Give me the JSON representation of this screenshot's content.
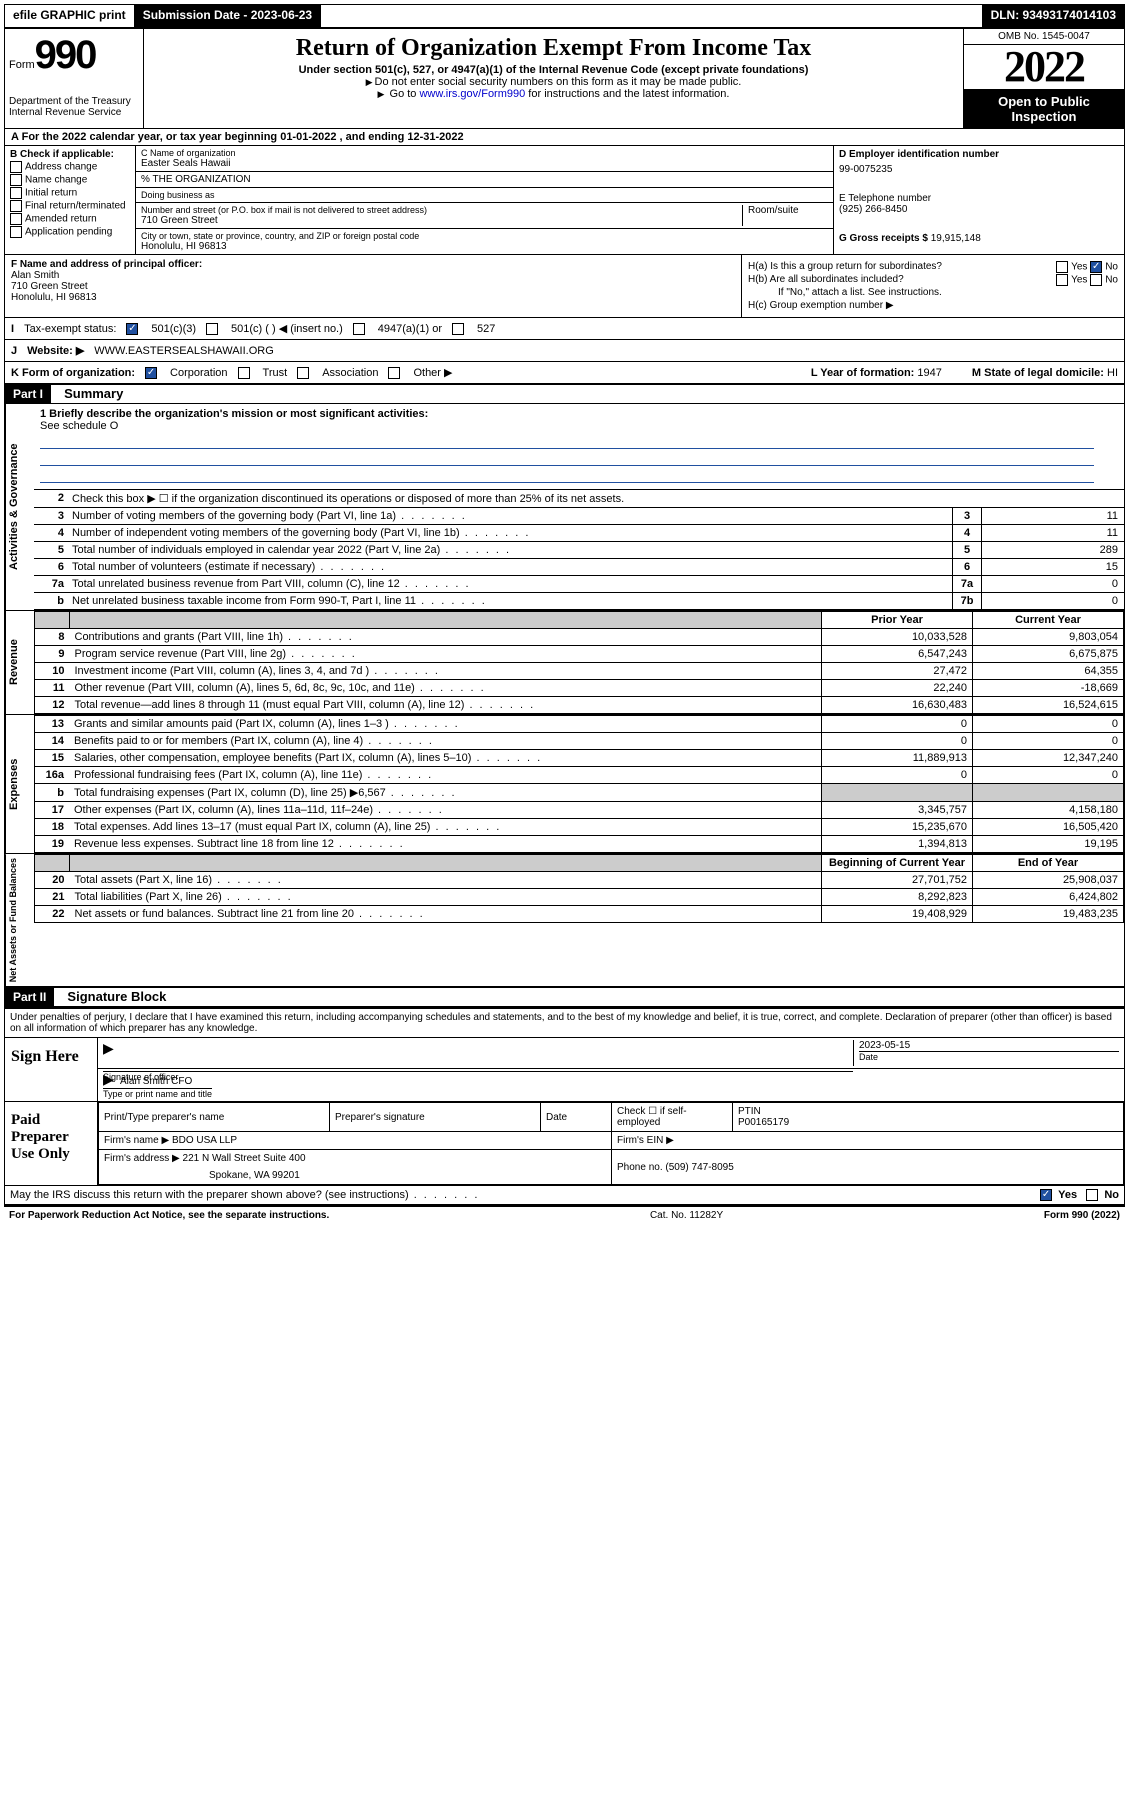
{
  "topbar": {
    "efile": "efile GRAPHIC print",
    "submission": "Submission Date - 2023-06-23",
    "dln": "DLN: 93493174014103"
  },
  "header": {
    "form_word": "Form",
    "form_num": "990",
    "dept": "Department of the Treasury Internal Revenue Service",
    "title": "Return of Organization Exempt From Income Tax",
    "sub": "Under section 501(c), 527, or 4947(a)(1) of the Internal Revenue Code (except private foundations)",
    "note1": "Do not enter social security numbers on this form as it may be made public.",
    "note2_pre": "Go to ",
    "note2_link": "www.irs.gov/Form990",
    "note2_post": " for instructions and the latest information.",
    "omb": "OMB No. 1545-0047",
    "year": "2022",
    "inspect": "Open to Public Inspection"
  },
  "row_a": "For the 2022 calendar year, or tax year beginning 01-01-2022    , and ending 12-31-2022",
  "col_b": {
    "hdr": "B Check if applicable:",
    "opts": [
      "Address change",
      "Name change",
      "Initial return",
      "Final return/terminated",
      "Amended return",
      "Application pending"
    ]
  },
  "col_c": {
    "name_lbl": "C Name of organization",
    "name": "Easter Seals Hawaii",
    "pct": "% THE ORGANIZATION",
    "dba": "Doing business as",
    "addr_lbl": "Number and street (or P.O. box if mail is not delivered to street address)",
    "addr": "710 Green Street",
    "room": "Room/suite",
    "city_lbl": "City or town, state or province, country, and ZIP or foreign postal code",
    "city": "Honolulu, HI  96813"
  },
  "col_d": {
    "ein_lbl": "D Employer identification number",
    "ein": "99-0075235",
    "tel_lbl": "E Telephone number",
    "tel": "(925) 266-8450",
    "gross_lbl": "G Gross receipts $",
    "gross": "19,915,148"
  },
  "row_f": {
    "lbl": "F  Name and address of principal officer:",
    "name": "Alan Smith",
    "addr": "710 Green Street",
    "city": "Honolulu, HI  96813"
  },
  "row_h": {
    "ha": "H(a)  Is this a group return for subordinates?",
    "hb": "H(b)  Are all subordinates included?",
    "hb_note": "If \"No,\" attach a list. See instructions.",
    "hc": "H(c)  Group exemption number ▶"
  },
  "row_i": {
    "lbl": "Tax-exempt status:",
    "a": "501(c)(3)",
    "b": "501(c) (  ) ◀ (insert no.)",
    "c": "4947(a)(1) or",
    "d": "527"
  },
  "row_j": {
    "lbl": "Website: ▶",
    "val": "WWW.EASTERSEALSHAWAII.ORG"
  },
  "row_k": {
    "lbl": "K Form of organization:",
    "opts": [
      "Corporation",
      "Trust",
      "Association",
      "Other ▶"
    ],
    "year_lbl": "L Year of formation:",
    "year": "1947",
    "state_lbl": "M State of legal domicile:",
    "state": "HI"
  },
  "parts": {
    "p1": "Part I",
    "p1_title": "Summary",
    "p2": "Part II",
    "p2_title": "Signature Block"
  },
  "vtabs": {
    "gov": "Activities & Governance",
    "rev": "Revenue",
    "exp": "Expenses",
    "net": "Net Assets or Fund Balances"
  },
  "mission": {
    "q": "1  Briefly describe the organization's mission or most significant activities:",
    "ans": "See schedule O"
  },
  "gov_rows": [
    {
      "n": "2",
      "t": "Check this box ▶ ☐  if the organization discontinued its operations or disposed of more than 25% of its net assets."
    },
    {
      "n": "3",
      "t": "Number of voting members of the governing body (Part VI, line 1a)",
      "box": "3",
      "v": "11"
    },
    {
      "n": "4",
      "t": "Number of independent voting members of the governing body (Part VI, line 1b)",
      "box": "4",
      "v": "11"
    },
    {
      "n": "5",
      "t": "Total number of individuals employed in calendar year 2022 (Part V, line 2a)",
      "box": "5",
      "v": "289"
    },
    {
      "n": "6",
      "t": "Total number of volunteers (estimate if necessary)",
      "box": "6",
      "v": "15"
    },
    {
      "n": "7a",
      "t": "Total unrelated business revenue from Part VIII, column (C), line 12",
      "box": "7a",
      "v": "0"
    },
    {
      "n": "b",
      "t": "Net unrelated business taxable income from Form 990-T, Part I, line 11",
      "box": "7b",
      "v": "0"
    }
  ],
  "col_hdrs": {
    "prior": "Prior Year",
    "curr": "Current Year",
    "beg": "Beginning of Current Year",
    "end": "End of Year"
  },
  "rev_rows": [
    {
      "n": "8",
      "t": "Contributions and grants (Part VIII, line 1h)",
      "p": "10,033,528",
      "c": "9,803,054"
    },
    {
      "n": "9",
      "t": "Program service revenue (Part VIII, line 2g)",
      "p": "6,547,243",
      "c": "6,675,875"
    },
    {
      "n": "10",
      "t": "Investment income (Part VIII, column (A), lines 3, 4, and 7d )",
      "p": "27,472",
      "c": "64,355"
    },
    {
      "n": "11",
      "t": "Other revenue (Part VIII, column (A), lines 5, 6d, 8c, 9c, 10c, and 11e)",
      "p": "22,240",
      "c": "-18,669"
    },
    {
      "n": "12",
      "t": "Total revenue—add lines 8 through 11 (must equal Part VIII, column (A), line 12)",
      "p": "16,630,483",
      "c": "16,524,615"
    }
  ],
  "exp_rows": [
    {
      "n": "13",
      "t": "Grants and similar amounts paid (Part IX, column (A), lines 1–3 )",
      "p": "0",
      "c": "0"
    },
    {
      "n": "14",
      "t": "Benefits paid to or for members (Part IX, column (A), line 4)",
      "p": "0",
      "c": "0"
    },
    {
      "n": "15",
      "t": "Salaries, other compensation, employee benefits (Part IX, column (A), lines 5–10)",
      "p": "11,889,913",
      "c": "12,347,240"
    },
    {
      "n": "16a",
      "t": "Professional fundraising fees (Part IX, column (A), line 11e)",
      "p": "0",
      "c": "0"
    },
    {
      "n": "b",
      "t": "Total fundraising expenses (Part IX, column (D), line 25) ▶6,567",
      "p": "shade",
      "c": "shade"
    },
    {
      "n": "17",
      "t": "Other expenses (Part IX, column (A), lines 11a–11d, 11f–24e)",
      "p": "3,345,757",
      "c": "4,158,180"
    },
    {
      "n": "18",
      "t": "Total expenses. Add lines 13–17 (must equal Part IX, column (A), line 25)",
      "p": "15,235,670",
      "c": "16,505,420"
    },
    {
      "n": "19",
      "t": "Revenue less expenses. Subtract line 18 from line 12",
      "p": "1,394,813",
      "c": "19,195"
    }
  ],
  "net_rows": [
    {
      "n": "20",
      "t": "Total assets (Part X, line 16)",
      "p": "27,701,752",
      "c": "25,908,037"
    },
    {
      "n": "21",
      "t": "Total liabilities (Part X, line 26)",
      "p": "8,292,823",
      "c": "6,424,802"
    },
    {
      "n": "22",
      "t": "Net assets or fund balances. Subtract line 21 from line 20",
      "p": "19,408,929",
      "c": "19,483,235"
    }
  ],
  "sig": {
    "decl": "Under penalties of perjury, I declare that I have examined this return, including accompanying schedules and statements, and to the best of my knowledge and belief, it is true, correct, and complete. Declaration of preparer (other than officer) is based on all information of which preparer has any knowledge.",
    "sign_here": "Sign Here",
    "sig_officer": "Signature of officer",
    "date_lbl": "Date",
    "date": "2023-05-15",
    "name_title": "Alan Smith CFO",
    "type_name": "Type or print name and title"
  },
  "prep": {
    "lbl": "Paid Preparer Use Only",
    "h1": "Print/Type preparer's name",
    "h2": "Preparer's signature",
    "h3": "Date",
    "h4_a": "Check ☐ if self-employed",
    "h4_b": "PTIN",
    "ptin": "P00165179",
    "firm_lbl": "Firm's name    ▶",
    "firm": "BDO USA LLP",
    "ein_lbl": "Firm's EIN ▶",
    "addr_lbl": "Firm's address ▶",
    "addr": "221 N Wall Street Suite 400",
    "addr2": "Spokane, WA  99201",
    "phone_lbl": "Phone no.",
    "phone": "(509) 747-8095"
  },
  "foot": {
    "q": "May the IRS discuss this return with the preparer shown above? (see instructions)",
    "yes": "Yes",
    "no": "No",
    "paperwork": "For Paperwork Reduction Act Notice, see the separate instructions.",
    "cat": "Cat. No. 11282Y",
    "form": "Form 990 (2022)"
  }
}
